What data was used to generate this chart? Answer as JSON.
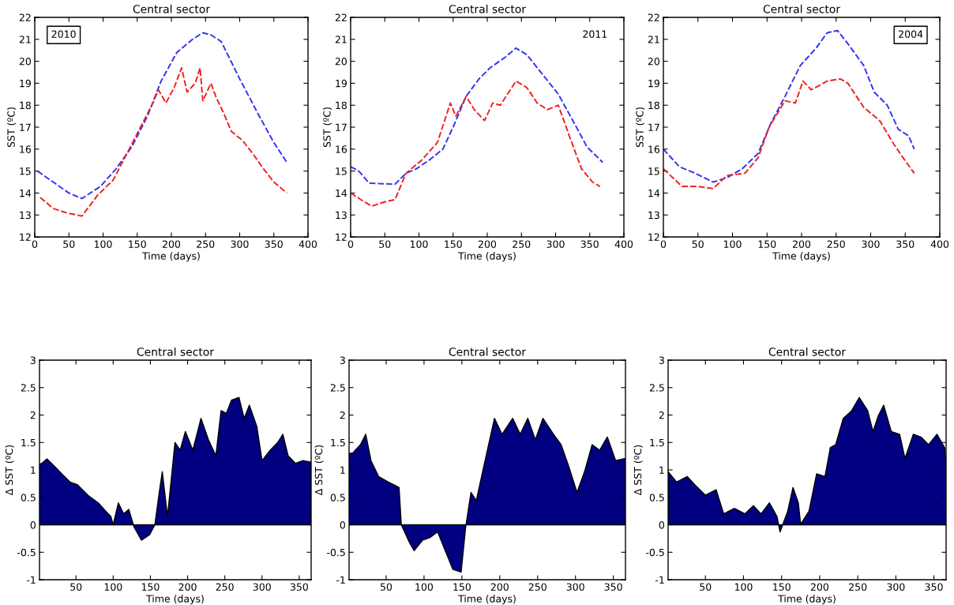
{
  "chart_data": [
    {
      "type": "line",
      "title": "Central sector",
      "xlabel": "Time (days)",
      "ylabel": "SST (ºC)",
      "xlim": [
        0,
        400
      ],
      "xticks": [
        0,
        50,
        100,
        150,
        200,
        250,
        300,
        350,
        400
      ],
      "ylim": [
        12,
        22
      ],
      "yticks": [
        12,
        13,
        14,
        15,
        16,
        17,
        18,
        19,
        20,
        21,
        22
      ],
      "grid": false,
      "line_style": "dashed",
      "marker": "none",
      "annotations": [
        "2010"
      ],
      "series": [
        {
          "color": "#3333ee",
          "x": [
            4,
            27,
            50,
            69,
            96,
            119,
            142,
            165,
            185,
            208,
            231,
            246,
            258,
            273,
            300,
            327,
            350,
            369
          ],
          "values": [
            15.0,
            14.5,
            14.0,
            13.75,
            14.3,
            15.1,
            16.1,
            17.5,
            19.1,
            20.4,
            21.0,
            21.3,
            21.2,
            20.9,
            19.2,
            17.6,
            16.3,
            15.4
          ]
        },
        {
          "color": "#ee2222",
          "x": [
            8,
            27,
            46,
            69,
            92,
            115,
            135,
            158,
            173,
            181,
            192,
            204,
            215,
            223,
            235,
            242,
            246,
            258,
            265,
            277,
            288,
            304,
            319,
            335,
            350,
            369
          ],
          "values": [
            13.8,
            13.3,
            13.1,
            12.95,
            13.9,
            14.6,
            15.8,
            17.2,
            18.1,
            18.7,
            18.1,
            18.8,
            19.7,
            18.6,
            19.0,
            19.7,
            18.2,
            19.0,
            18.4,
            17.6,
            16.8,
            16.4,
            15.8,
            15.1,
            14.5,
            14.0
          ]
        }
      ]
    },
    {
      "type": "line",
      "title": "Central sector",
      "xlabel": "Time (days)",
      "ylabel": "SST (ºC)",
      "xlim": [
        0,
        400
      ],
      "xticks": [
        0,
        50,
        100,
        150,
        200,
        250,
        300,
        350,
        400
      ],
      "ylim": [
        12,
        22
      ],
      "yticks": [
        12,
        13,
        14,
        15,
        16,
        17,
        18,
        19,
        20,
        21,
        22
      ],
      "grid": false,
      "line_style": "dashed",
      "marker": "none",
      "annotations": [
        "2011"
      ],
      "series": [
        {
          "color": "#3333ee",
          "x": [
            0,
            12,
            27,
            65,
            81,
            96,
            115,
            135,
            150,
            169,
            188,
            204,
            227,
            242,
            258,
            281,
            304,
            327,
            346,
            369
          ],
          "values": [
            15.2,
            15.0,
            14.45,
            14.4,
            14.9,
            15.1,
            15.5,
            16.0,
            17.0,
            18.4,
            19.2,
            19.7,
            20.2,
            20.6,
            20.3,
            19.4,
            18.5,
            17.2,
            16.1,
            15.4
          ]
        },
        {
          "color": "#ee2222",
          "x": [
            0,
            15,
            31,
            50,
            65,
            81,
            104,
            127,
            146,
            154,
            169,
            181,
            196,
            208,
            219,
            242,
            258,
            273,
            288,
            304,
            319,
            338,
            354,
            365
          ],
          "values": [
            14.0,
            13.7,
            13.4,
            13.6,
            13.7,
            14.9,
            15.5,
            16.3,
            18.1,
            17.5,
            18.4,
            17.8,
            17.3,
            18.1,
            18.0,
            19.1,
            18.8,
            18.1,
            17.8,
            18.0,
            16.7,
            15.1,
            14.5,
            14.3
          ]
        }
      ]
    },
    {
      "type": "line",
      "title": "Central sector",
      "xlabel": "Time (days)",
      "ylabel": "SST (ºC)",
      "xlim": [
        0,
        400
      ],
      "xticks": [
        0,
        50,
        100,
        150,
        200,
        250,
        300,
        350,
        400
      ],
      "ylim": [
        12,
        22
      ],
      "yticks": [
        12,
        13,
        14,
        15,
        16,
        17,
        18,
        19,
        20,
        21,
        22
      ],
      "grid": false,
      "line_style": "dashed",
      "marker": "none",
      "annotations": [
        "2004"
      ],
      "series": [
        {
          "color": "#3333ee",
          "x": [
            0,
            23,
            46,
            72,
            92,
            114,
            137,
            156,
            176,
            198,
            221,
            237,
            252,
            267,
            290,
            305,
            324,
            340,
            355,
            363
          ],
          "values": [
            16.0,
            15.2,
            14.9,
            14.5,
            14.7,
            15.1,
            15.8,
            17.2,
            18.4,
            19.8,
            20.6,
            21.3,
            21.4,
            20.8,
            19.8,
            18.6,
            18.0,
            16.9,
            16.6,
            16.0
          ]
        },
        {
          "color": "#ee2222",
          "x": [
            0,
            27,
            50,
            72,
            92,
            118,
            137,
            153,
            176,
            191,
            202,
            214,
            237,
            256,
            267,
            290,
            313,
            332,
            347,
            363
          ],
          "values": [
            15.1,
            14.3,
            14.3,
            14.2,
            14.8,
            14.9,
            15.6,
            17.0,
            18.2,
            18.1,
            19.1,
            18.7,
            19.1,
            19.2,
            19.0,
            17.9,
            17.3,
            16.3,
            15.6,
            14.9
          ]
        }
      ]
    },
    {
      "type": "area",
      "title": "Central sector",
      "xlabel": "Time (days)",
      "ylabel": "Δ SST (ºC)",
      "xlim": [
        1,
        366
      ],
      "xticks": [
        50,
        100,
        150,
        200,
        250,
        300,
        350
      ],
      "ylim": [
        -1,
        3
      ],
      "yticks": [
        -1,
        -0.5,
        0,
        0.5,
        1,
        1.5,
        2,
        2.5,
        3
      ],
      "grid": false,
      "series": [
        {
          "color": "#000080",
          "x": [
            1,
            4,
            11,
            21,
            31,
            42,
            52,
            66,
            80,
            90,
            97,
            100,
            107,
            114,
            121,
            128,
            138,
            149,
            156,
            162,
            166,
            173,
            183,
            190,
            197,
            207,
            218,
            228,
            238,
            245,
            252,
            259,
            269,
            276,
            283,
            293,
            300,
            311,
            321,
            328,
            335,
            345,
            355,
            366
          ],
          "values": [
            1.1,
            1.12,
            1.2,
            1.07,
            0.93,
            0.78,
            0.73,
            0.54,
            0.4,
            0.25,
            0.15,
            0.0,
            0.4,
            0.2,
            0.28,
            -0.04,
            -0.28,
            -0.18,
            0.0,
            0.6,
            0.97,
            0.15,
            1.5,
            1.36,
            1.7,
            1.36,
            1.94,
            1.55,
            1.26,
            2.08,
            2.03,
            2.27,
            2.32,
            1.94,
            2.18,
            1.79,
            1.17,
            1.36,
            1.5,
            1.65,
            1.26,
            1.12,
            1.17,
            1.14
          ]
        }
      ]
    },
    {
      "type": "area",
      "title": "Central sector",
      "xlabel": "Time (days)",
      "ylabel": "Δ SST (ºC)",
      "xlim": [
        1,
        366
      ],
      "xticks": [
        50,
        100,
        150,
        200,
        250,
        300,
        350
      ],
      "ylim": [
        -1,
        3
      ],
      "yticks": [
        -1,
        -0.5,
        0,
        0.5,
        1,
        1.5,
        2,
        2.5,
        3
      ],
      "grid": false,
      "series": [
        {
          "color": "#000080",
          "x": [
            1,
            6,
            16,
            23,
            30,
            40,
            53,
            67,
            70,
            81,
            87,
            98,
            108,
            118,
            128,
            138,
            149,
            155,
            162,
            169,
            179,
            193,
            203,
            217,
            227,
            237,
            247,
            257,
            271,
            281,
            291,
            302,
            312,
            322,
            332,
            342,
            353,
            366
          ],
          "values": [
            1.3,
            1.31,
            1.46,
            1.65,
            1.17,
            0.88,
            0.78,
            0.68,
            0.0,
            -0.33,
            -0.47,
            -0.28,
            -0.23,
            -0.13,
            -0.47,
            -0.81,
            -0.86,
            -0.04,
            0.59,
            0.44,
            1.07,
            1.94,
            1.65,
            1.94,
            1.65,
            1.94,
            1.55,
            1.94,
            1.65,
            1.46,
            1.07,
            0.59,
            0.97,
            1.46,
            1.36,
            1.6,
            1.17,
            1.21
          ]
        }
      ]
    },
    {
      "type": "area",
      "title": "Central sector",
      "xlabel": "Time (days)",
      "ylabel": "Δ SST (ºC)",
      "xlim": [
        1,
        366
      ],
      "xticks": [
        50,
        100,
        150,
        200,
        250,
        300,
        350
      ],
      "ylim": [
        -1,
        3
      ],
      "yticks": [
        -1,
        -0.5,
        0,
        0.5,
        1,
        1.5,
        2,
        2.5,
        3
      ],
      "grid": false,
      "series": [
        {
          "color": "#000080",
          "x": [
            1,
            12,
            26,
            36,
            50,
            64,
            74,
            88,
            102,
            113,
            123,
            134,
            144,
            148,
            158,
            165,
            172,
            175,
            186,
            196,
            207,
            214,
            221,
            231,
            242,
            252,
            263,
            270,
            277,
            284,
            294,
            305,
            312,
            323,
            333,
            343,
            354,
            364,
            366
          ],
          "values": [
            0.97,
            0.78,
            0.88,
            0.73,
            0.54,
            0.64,
            0.2,
            0.3,
            0.2,
            0.35,
            0.2,
            0.4,
            0.15,
            -0.13,
            0.25,
            0.68,
            0.4,
            0.01,
            0.25,
            0.93,
            0.88,
            1.41,
            1.46,
            1.94,
            2.08,
            2.32,
            2.08,
            1.7,
            1.99,
            2.18,
            1.7,
            1.65,
            1.21,
            1.65,
            1.6,
            1.46,
            1.65,
            1.41,
            1.07
          ]
        }
      ]
    }
  ]
}
